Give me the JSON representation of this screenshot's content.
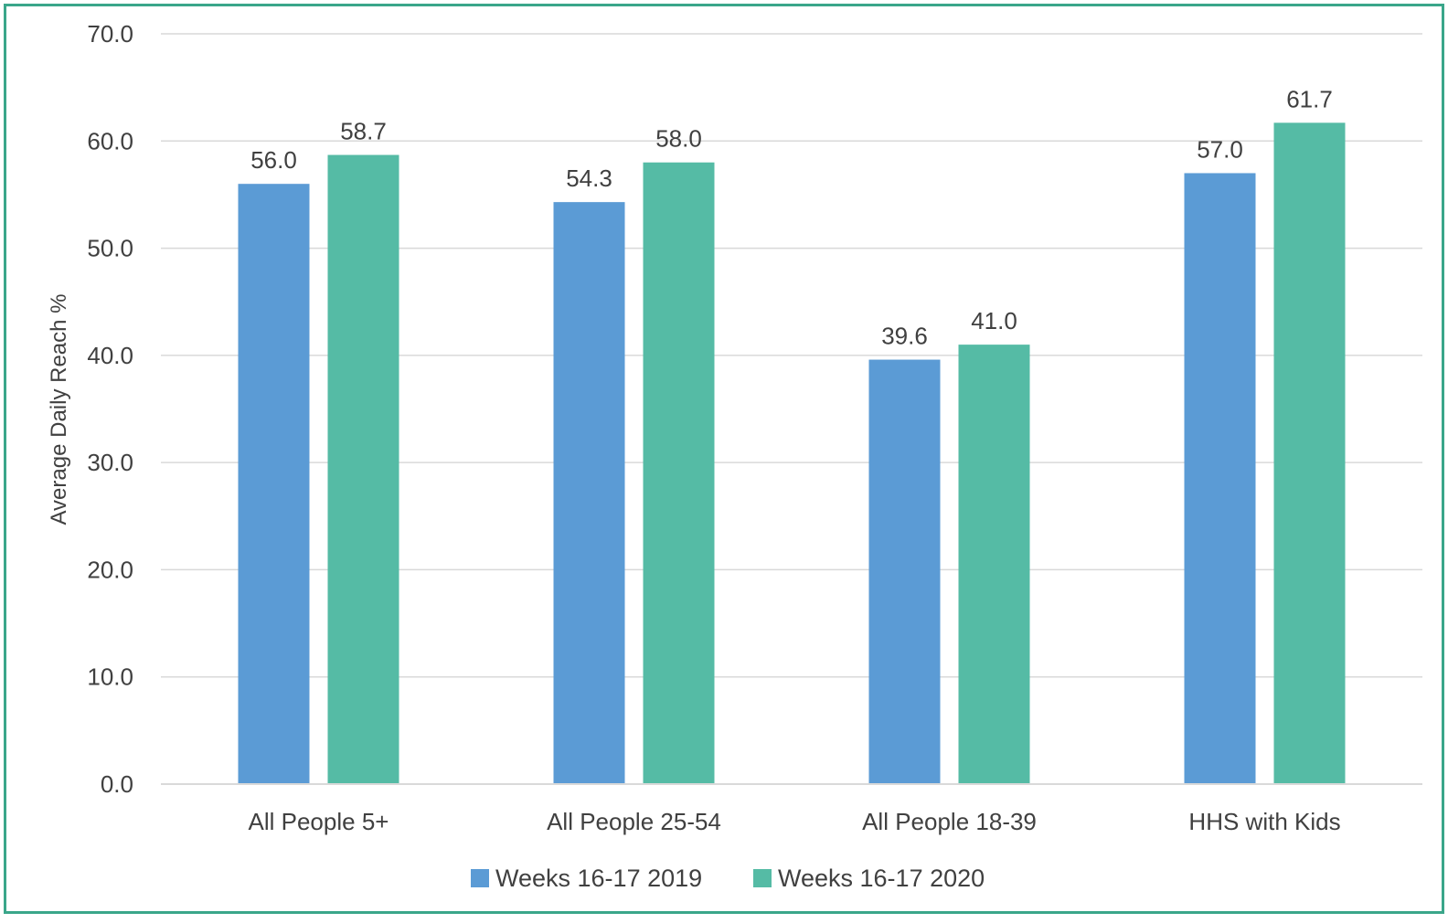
{
  "chart_data": {
    "type": "bar",
    "title": "",
    "xlabel": "",
    "ylabel": "Average Daily Reach %",
    "ylim": [
      0,
      70
    ],
    "yticks": [
      "0.0",
      "10.0",
      "20.0",
      "30.0",
      "40.0",
      "50.0",
      "60.0",
      "70.0"
    ],
    "grid": true,
    "legend_position": "bottom",
    "categories": [
      "All People 5+",
      "All People 25-54",
      "All People 18-39",
      "HHS with Kids"
    ],
    "series": [
      {
        "name": "Weeks 16-17 2019",
        "color": "#5b9bd5",
        "values": [
          56.0,
          54.3,
          39.6,
          57.0
        ],
        "labels": [
          "56.0",
          "54.3",
          "39.6",
          "57.0"
        ]
      },
      {
        "name": "Weeks 16-17 2020",
        "color": "#55bba5",
        "values": [
          58.7,
          58.0,
          41.0,
          61.7
        ],
        "labels": [
          "58.7",
          "58.0",
          "41.0",
          "61.7"
        ]
      }
    ]
  }
}
